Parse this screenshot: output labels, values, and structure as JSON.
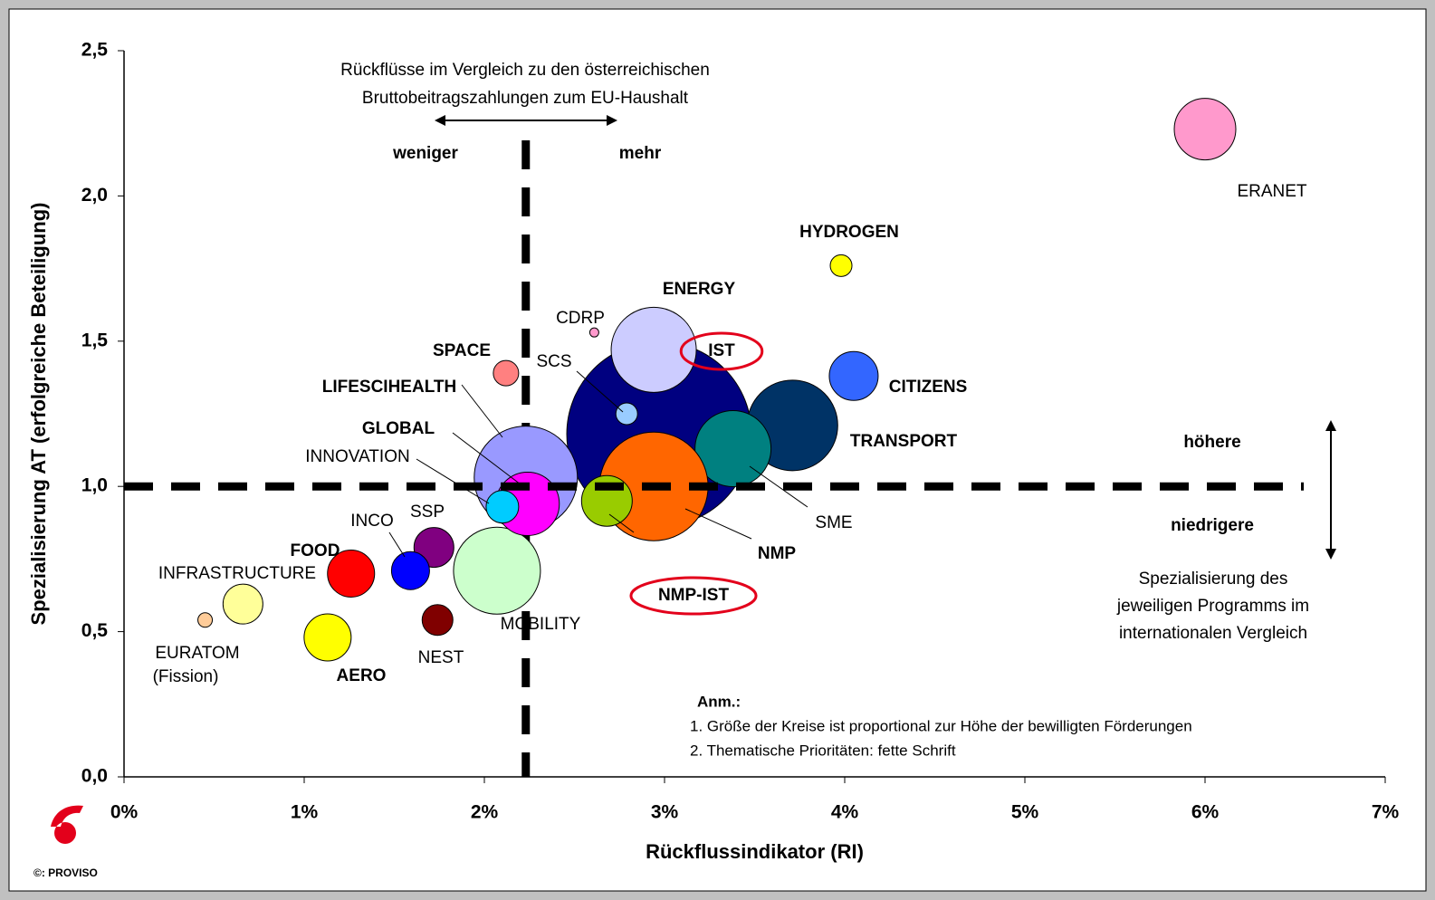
{
  "chart_data": {
    "type": "bubble",
    "xlabel": "Rückflussindikator (RI)",
    "ylabel": "Spezialisierung AT  (erfolgreiche Beteiligung)",
    "xlim": [
      0,
      7
    ],
    "ylim": [
      0,
      2.5
    ],
    "xticks": [
      {
        "value": 0,
        "label": "0%"
      },
      {
        "value": 1,
        "label": "1%"
      },
      {
        "value": 2,
        "label": "2%"
      },
      {
        "value": 3,
        "label": "3%"
      },
      {
        "value": 4,
        "label": "4%"
      },
      {
        "value": 5,
        "label": "5%"
      },
      {
        "value": 6,
        "label": "6%"
      },
      {
        "value": 7,
        "label": "7%"
      }
    ],
    "yticks": [
      {
        "value": 0,
        "label": "0,0"
      },
      {
        "value": 0.5,
        "label": "0,5"
      },
      {
        "value": 1,
        "label": "1,0"
      },
      {
        "value": 1.5,
        "label": "1,5"
      },
      {
        "value": 2,
        "label": "2,0"
      },
      {
        "value": 2.5,
        "label": "2,5"
      }
    ],
    "reference_lines": {
      "x": 2.23,
      "y": 1.0
    },
    "points": [
      {
        "label": "ERANET",
        "x": 6.0,
        "y": 2.23,
        "size": 34,
        "color": "#ff99cc",
        "bold": false
      },
      {
        "label": "IST",
        "x": 2.97,
        "y": 1.18,
        "size": 102,
        "color": "#000080",
        "bold": true,
        "highlight": true
      },
      {
        "label": "TRANSPORT",
        "x": 3.71,
        "y": 1.21,
        "size": 50,
        "color": "#003366",
        "bold": true
      },
      {
        "label": "ENERGY",
        "x": 2.94,
        "y": 1.47,
        "size": 47,
        "color": "#ccccff",
        "bold": true
      },
      {
        "label": "CITIZENS",
        "x": 4.05,
        "y": 1.38,
        "size": 27,
        "color": "#3366ff",
        "bold": true
      },
      {
        "label": "SME",
        "x": 3.38,
        "y": 1.13,
        "size": 42,
        "color": "#008080",
        "bold": false
      },
      {
        "label": "NMP",
        "x": 2.94,
        "y": 1.0,
        "size": 60,
        "color": "#ff6600",
        "bold": true
      },
      {
        "label": "NMP-IST",
        "x": 2.68,
        "y": 0.95,
        "size": 28,
        "color": "#99cc00",
        "bold": true,
        "highlight": true
      },
      {
        "label": "SCS",
        "x": 2.79,
        "y": 1.25,
        "size": 12,
        "color": "#99ccff",
        "bold": false
      },
      {
        "label": "CDRP",
        "x": 2.61,
        "y": 1.53,
        "size": 5,
        "color": "#ff99cc",
        "bold": false
      },
      {
        "label": "HYDROGEN",
        "x": 3.98,
        "y": 1.76,
        "size": 12,
        "color": "#ffff00",
        "bold": true
      },
      {
        "label": "LIFESCIHEALTH",
        "x": 2.23,
        "y": 1.03,
        "size": 57,
        "color": "#9999ff",
        "bold": true
      },
      {
        "label": "MOBILITY",
        "x": 2.07,
        "y": 0.71,
        "size": 48,
        "color": "#ccffcc",
        "bold": false
      },
      {
        "label": "GLOBAL",
        "x": 2.24,
        "y": 0.94,
        "size": 35,
        "color": "#ff00ff",
        "bold": true
      },
      {
        "label": "INNOVATION",
        "x": 2.1,
        "y": 0.93,
        "size": 18,
        "color": "#00ccff",
        "bold": false
      },
      {
        "label": "SPACE",
        "x": 2.12,
        "y": 1.39,
        "size": 14,
        "color": "#ff8080",
        "bold": true
      },
      {
        "label": "SSP",
        "x": 1.72,
        "y": 0.79,
        "size": 22,
        "color": "#800080",
        "bold": false
      },
      {
        "label": "INCO",
        "x": 1.59,
        "y": 0.71,
        "size": 21,
        "color": "#0000ff",
        "bold": false
      },
      {
        "label": "FOOD",
        "x": 1.26,
        "y": 0.7,
        "size": 26,
        "color": "#ff0000",
        "bold": true
      },
      {
        "label": "NEST",
        "x": 1.74,
        "y": 0.54,
        "size": 17,
        "color": "#800000",
        "bold": false
      },
      {
        "label": "INFRASTRUCTURE",
        "x": 0.66,
        "y": 0.595,
        "size": 22,
        "color": "#ffff99",
        "bold": false
      },
      {
        "label": "EURATOM",
        "x": 0.45,
        "y": 0.54,
        "size": 8,
        "color": "#ffcc99",
        "bold": false
      },
      {
        "label": "AERO",
        "x": 1.13,
        "y": 0.48,
        "size": 26,
        "color": "#ffff00",
        "bold": true
      }
    ],
    "annotations": [
      "Rückflüsse im Vergleich zu den österreichischen",
      "Bruttobeitragszahlungen zum EU-Haushalt",
      "weniger",
      "mehr",
      "höhere",
      "niedrigere",
      "Spezialisierung des",
      "jeweiligen Programms im",
      "internationalen Vergleich",
      "Anm.:",
      "1. Größe der Kreise ist proportional zur Höhe der bewilligten Förderungen",
      "2. Thematische Prioritäten: fette Schrift",
      "(Fission)",
      "©: PROVISO"
    ]
  }
}
